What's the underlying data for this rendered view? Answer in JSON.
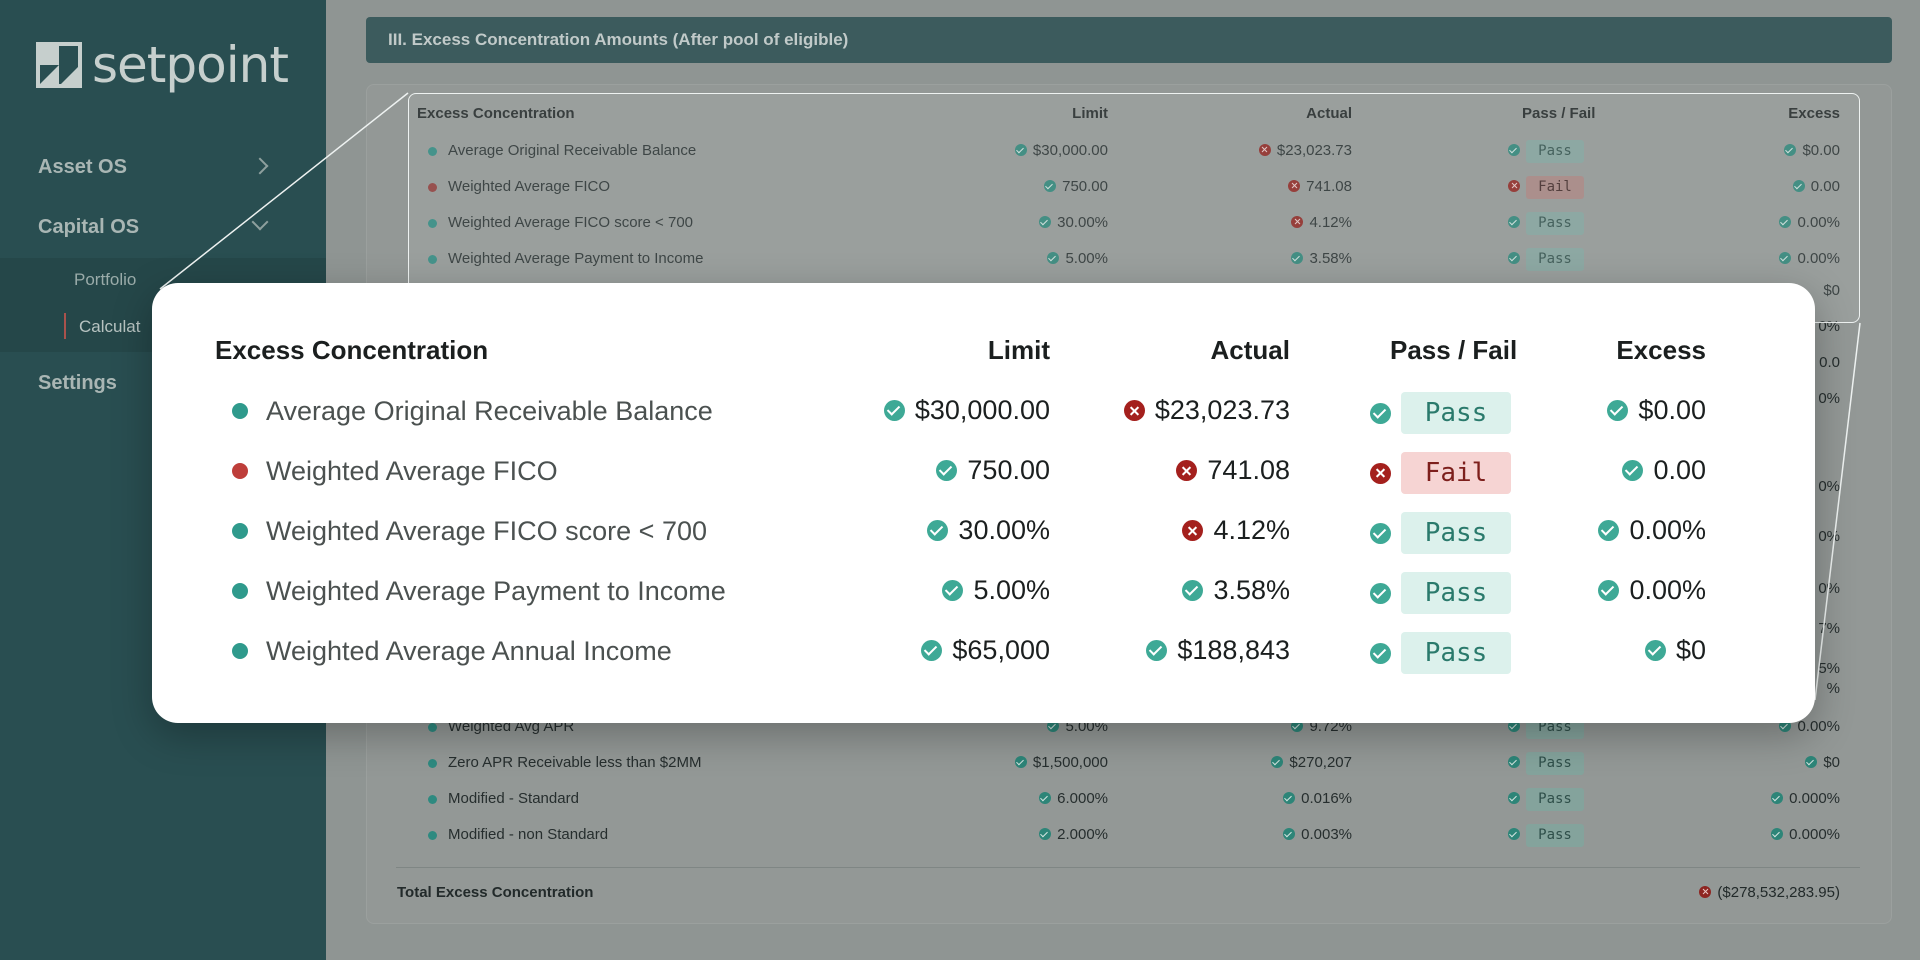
{
  "sidebar": {
    "logo_text": "setpoint",
    "nav": [
      {
        "label": "Asset OS"
      },
      {
        "label": "Capital OS"
      },
      {
        "label": "Settings"
      }
    ],
    "sub_items": [
      {
        "label": "Portfolio"
      },
      {
        "label": "Calculat"
      }
    ]
  },
  "section": {
    "title": "III. Excess Concentration Amounts (After pool of eligible)"
  },
  "table": {
    "headers": {
      "name": "Excess Concentration",
      "limit": "Limit",
      "actual": "Actual",
      "pass_fail": "Pass / Fail",
      "excess": "Excess"
    },
    "background_rows": [
      {
        "name": "Average Original Receivable Balance",
        "limit": "$30,000.00",
        "actual": "$23,023.73",
        "actual_ok": false,
        "status": "Pass",
        "excess": "$0.00"
      },
      {
        "name": "Weighted Average FICO",
        "limit": "750.00",
        "actual": "741.08",
        "actual_ok": false,
        "status": "Fail",
        "excess": "0.00"
      },
      {
        "name": "Weighted Average FICO score < 700",
        "limit": "30.00%",
        "actual": "4.12%",
        "actual_ok": false,
        "status": "Pass",
        "excess": "0.00%"
      },
      {
        "name": "Weighted Average Payment to Income",
        "limit": "5.00%",
        "actual": "3.58%",
        "actual_ok": true,
        "status": "Pass",
        "excess": "0.00%"
      },
      {
        "name": "Weighted Avg APR",
        "limit": "5.00%",
        "actual": "9.72%",
        "actual_ok": true,
        "status": "Pass",
        "excess": "0.00%"
      },
      {
        "name": "Zero APR Receivable less than $2MM",
        "limit": "$1,500,000",
        "actual": "$270,207",
        "actual_ok": true,
        "status": "Pass",
        "excess": "$0"
      },
      {
        "name": "Modified - Standard",
        "limit": "6.000%",
        "actual": "0.016%",
        "actual_ok": true,
        "status": "Pass",
        "excess": "0.000%"
      },
      {
        "name": "Modified - non Standard",
        "limit": "2.000%",
        "actual": "0.003%",
        "actual_ok": true,
        "status": "Pass",
        "excess": "0.000%"
      }
    ],
    "partial_excess_values": [
      "$0",
      "0%",
      "0.0",
      "0%",
      "0%",
      "0%",
      "0%",
      "7%",
      "%",
      "5%"
    ],
    "total_label": "Total Excess Concentration",
    "total_value": "($278,532,283.95)"
  },
  "zoom": {
    "rows": [
      {
        "name": "Average Original Receivable Balance",
        "limit": "$30,000.00",
        "actual": "$23,023.73",
        "actual_ok": false,
        "status": "Pass",
        "excess": "$0.00"
      },
      {
        "name": "Weighted Average FICO",
        "limit": "750.00",
        "actual": "741.08",
        "actual_ok": false,
        "status": "Fail",
        "excess": "0.00"
      },
      {
        "name": "Weighted Average FICO score < 700",
        "limit": "30.00%",
        "actual": "4.12%",
        "actual_ok": false,
        "status": "Pass",
        "excess": "0.00%"
      },
      {
        "name": "Weighted Average Payment to Income",
        "limit": "5.00%",
        "actual": "3.58%",
        "actual_ok": true,
        "status": "Pass",
        "excess": "0.00%"
      },
      {
        "name": "Weighted Average Annual Income",
        "limit": "$65,000",
        "actual": "$188,843",
        "actual_ok": true,
        "status": "Pass",
        "excess": "$0"
      }
    ]
  },
  "colors": {
    "sidebar_bg": "#294e51",
    "pass": "#3ea996",
    "fail": "#a4201d",
    "pass_badge_bg": "#dcf1ec",
    "fail_badge_bg": "#f6d4d3"
  }
}
